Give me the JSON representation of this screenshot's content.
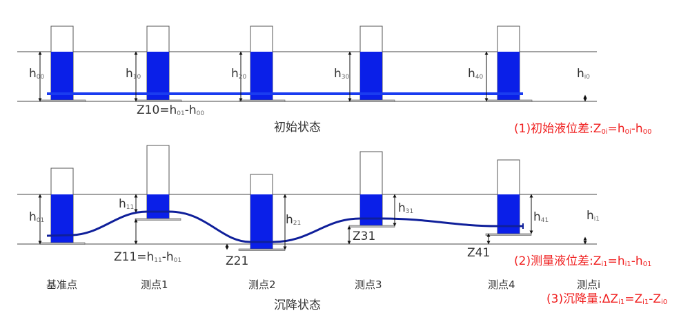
{
  "colors": {
    "water": "#0a1fe8",
    "pipe_initial": "#1a3cf0",
    "pipe_settled": "#0f1f9a",
    "guide": "#444444",
    "formula": "#f02020"
  },
  "initial": {
    "title": "初始状态",
    "heights": [
      [
        "h",
        "00"
      ],
      [
        "h",
        "10"
      ],
      [
        "h",
        "20"
      ],
      [
        "h",
        "30"
      ],
      [
        "h",
        "40"
      ],
      [
        "h",
        "i0"
      ]
    ],
    "formula": [
      "Z10=h",
      "01",
      "-h",
      "00"
    ],
    "note": [
      "(1)初始液位差:Z",
      "0i",
      "=h",
      "0i",
      "-h",
      "00"
    ]
  },
  "settled": {
    "title": "沉降状态",
    "heights": [
      [
        "h",
        "01"
      ],
      [
        "h",
        "11"
      ],
      [
        "h",
        "21"
      ],
      [
        "h",
        "31"
      ],
      [
        "h",
        "41"
      ],
      [
        "h",
        "i1"
      ]
    ],
    "formula": [
      "Z11=h",
      "11",
      "-h",
      "01"
    ],
    "z_labels": [
      "Z21",
      "Z31",
      "Z41"
    ],
    "note2": [
      "(2)测量液位差:Z",
      "i1",
      "=h",
      "i1",
      "-h",
      "01"
    ],
    "note3": [
      "(3)沉降量:ΔZ",
      "i1",
      "=Z",
      "i1",
      "-Z",
      "i0"
    ]
  },
  "points": [
    "基准点",
    "测点1",
    "测点2",
    "测点3",
    "测点4",
    "测点i"
  ]
}
